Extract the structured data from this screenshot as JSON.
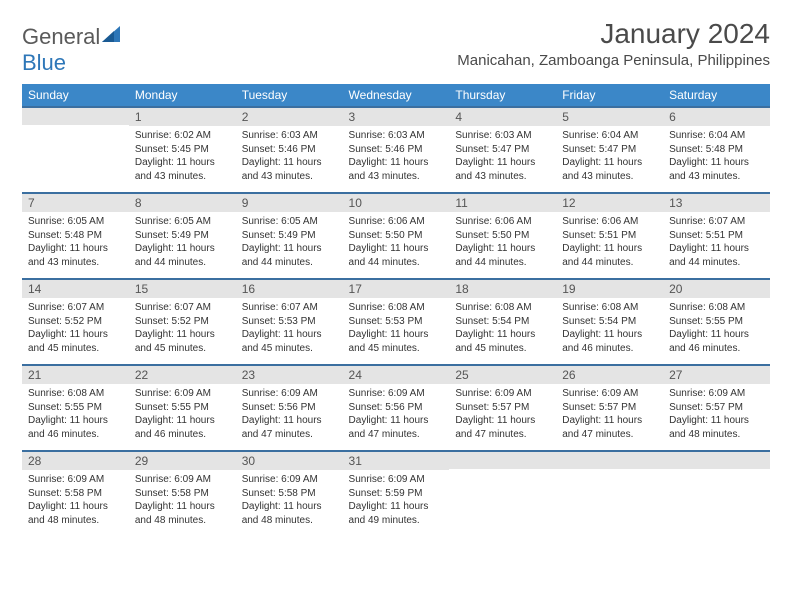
{
  "logo": {
    "word1": "General",
    "word2": "Blue"
  },
  "title": "January 2024",
  "location": "Manicahan, Zamboanga Peninsula, Philippines",
  "colors": {
    "header_bg": "#3b87c8",
    "header_text": "#ffffff",
    "row_border": "#3b6fa0",
    "daynum_bg": "#e4e4e4",
    "body_text": "#333333",
    "logo_gray": "#5a5a5a",
    "logo_blue": "#2e77b8",
    "page_bg": "#ffffff"
  },
  "days_of_week": [
    "Sunday",
    "Monday",
    "Tuesday",
    "Wednesday",
    "Thursday",
    "Friday",
    "Saturday"
  ],
  "weeks": [
    [
      {
        "n": "",
        "sunrise": "",
        "sunset": "",
        "daylight": ""
      },
      {
        "n": "1",
        "sunrise": "Sunrise: 6:02 AM",
        "sunset": "Sunset: 5:45 PM",
        "daylight": "Daylight: 11 hours and 43 minutes."
      },
      {
        "n": "2",
        "sunrise": "Sunrise: 6:03 AM",
        "sunset": "Sunset: 5:46 PM",
        "daylight": "Daylight: 11 hours and 43 minutes."
      },
      {
        "n": "3",
        "sunrise": "Sunrise: 6:03 AM",
        "sunset": "Sunset: 5:46 PM",
        "daylight": "Daylight: 11 hours and 43 minutes."
      },
      {
        "n": "4",
        "sunrise": "Sunrise: 6:03 AM",
        "sunset": "Sunset: 5:47 PM",
        "daylight": "Daylight: 11 hours and 43 minutes."
      },
      {
        "n": "5",
        "sunrise": "Sunrise: 6:04 AM",
        "sunset": "Sunset: 5:47 PM",
        "daylight": "Daylight: 11 hours and 43 minutes."
      },
      {
        "n": "6",
        "sunrise": "Sunrise: 6:04 AM",
        "sunset": "Sunset: 5:48 PM",
        "daylight": "Daylight: 11 hours and 43 minutes."
      }
    ],
    [
      {
        "n": "7",
        "sunrise": "Sunrise: 6:05 AM",
        "sunset": "Sunset: 5:48 PM",
        "daylight": "Daylight: 11 hours and 43 minutes."
      },
      {
        "n": "8",
        "sunrise": "Sunrise: 6:05 AM",
        "sunset": "Sunset: 5:49 PM",
        "daylight": "Daylight: 11 hours and 44 minutes."
      },
      {
        "n": "9",
        "sunrise": "Sunrise: 6:05 AM",
        "sunset": "Sunset: 5:49 PM",
        "daylight": "Daylight: 11 hours and 44 minutes."
      },
      {
        "n": "10",
        "sunrise": "Sunrise: 6:06 AM",
        "sunset": "Sunset: 5:50 PM",
        "daylight": "Daylight: 11 hours and 44 minutes."
      },
      {
        "n": "11",
        "sunrise": "Sunrise: 6:06 AM",
        "sunset": "Sunset: 5:50 PM",
        "daylight": "Daylight: 11 hours and 44 minutes."
      },
      {
        "n": "12",
        "sunrise": "Sunrise: 6:06 AM",
        "sunset": "Sunset: 5:51 PM",
        "daylight": "Daylight: 11 hours and 44 minutes."
      },
      {
        "n": "13",
        "sunrise": "Sunrise: 6:07 AM",
        "sunset": "Sunset: 5:51 PM",
        "daylight": "Daylight: 11 hours and 44 minutes."
      }
    ],
    [
      {
        "n": "14",
        "sunrise": "Sunrise: 6:07 AM",
        "sunset": "Sunset: 5:52 PM",
        "daylight": "Daylight: 11 hours and 45 minutes."
      },
      {
        "n": "15",
        "sunrise": "Sunrise: 6:07 AM",
        "sunset": "Sunset: 5:52 PM",
        "daylight": "Daylight: 11 hours and 45 minutes."
      },
      {
        "n": "16",
        "sunrise": "Sunrise: 6:07 AM",
        "sunset": "Sunset: 5:53 PM",
        "daylight": "Daylight: 11 hours and 45 minutes."
      },
      {
        "n": "17",
        "sunrise": "Sunrise: 6:08 AM",
        "sunset": "Sunset: 5:53 PM",
        "daylight": "Daylight: 11 hours and 45 minutes."
      },
      {
        "n": "18",
        "sunrise": "Sunrise: 6:08 AM",
        "sunset": "Sunset: 5:54 PM",
        "daylight": "Daylight: 11 hours and 45 minutes."
      },
      {
        "n": "19",
        "sunrise": "Sunrise: 6:08 AM",
        "sunset": "Sunset: 5:54 PM",
        "daylight": "Daylight: 11 hours and 46 minutes."
      },
      {
        "n": "20",
        "sunrise": "Sunrise: 6:08 AM",
        "sunset": "Sunset: 5:55 PM",
        "daylight": "Daylight: 11 hours and 46 minutes."
      }
    ],
    [
      {
        "n": "21",
        "sunrise": "Sunrise: 6:08 AM",
        "sunset": "Sunset: 5:55 PM",
        "daylight": "Daylight: 11 hours and 46 minutes."
      },
      {
        "n": "22",
        "sunrise": "Sunrise: 6:09 AM",
        "sunset": "Sunset: 5:55 PM",
        "daylight": "Daylight: 11 hours and 46 minutes."
      },
      {
        "n": "23",
        "sunrise": "Sunrise: 6:09 AM",
        "sunset": "Sunset: 5:56 PM",
        "daylight": "Daylight: 11 hours and 47 minutes."
      },
      {
        "n": "24",
        "sunrise": "Sunrise: 6:09 AM",
        "sunset": "Sunset: 5:56 PM",
        "daylight": "Daylight: 11 hours and 47 minutes."
      },
      {
        "n": "25",
        "sunrise": "Sunrise: 6:09 AM",
        "sunset": "Sunset: 5:57 PM",
        "daylight": "Daylight: 11 hours and 47 minutes."
      },
      {
        "n": "26",
        "sunrise": "Sunrise: 6:09 AM",
        "sunset": "Sunset: 5:57 PM",
        "daylight": "Daylight: 11 hours and 47 minutes."
      },
      {
        "n": "27",
        "sunrise": "Sunrise: 6:09 AM",
        "sunset": "Sunset: 5:57 PM",
        "daylight": "Daylight: 11 hours and 48 minutes."
      }
    ],
    [
      {
        "n": "28",
        "sunrise": "Sunrise: 6:09 AM",
        "sunset": "Sunset: 5:58 PM",
        "daylight": "Daylight: 11 hours and 48 minutes."
      },
      {
        "n": "29",
        "sunrise": "Sunrise: 6:09 AM",
        "sunset": "Sunset: 5:58 PM",
        "daylight": "Daylight: 11 hours and 48 minutes."
      },
      {
        "n": "30",
        "sunrise": "Sunrise: 6:09 AM",
        "sunset": "Sunset: 5:58 PM",
        "daylight": "Daylight: 11 hours and 48 minutes."
      },
      {
        "n": "31",
        "sunrise": "Sunrise: 6:09 AM",
        "sunset": "Sunset: 5:59 PM",
        "daylight": "Daylight: 11 hours and 49 minutes."
      },
      {
        "n": "",
        "sunrise": "",
        "sunset": "",
        "daylight": ""
      },
      {
        "n": "",
        "sunrise": "",
        "sunset": "",
        "daylight": ""
      },
      {
        "n": "",
        "sunrise": "",
        "sunset": "",
        "daylight": ""
      }
    ]
  ]
}
